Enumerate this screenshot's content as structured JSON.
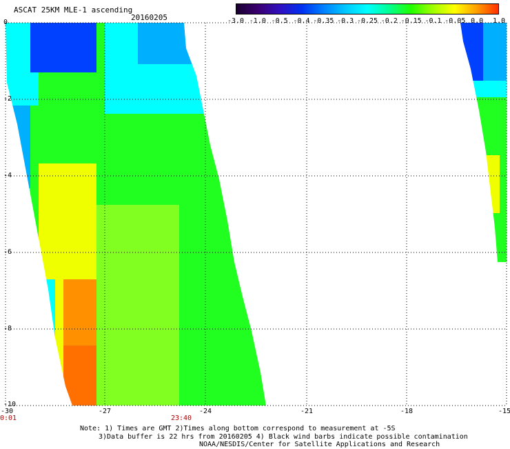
{
  "header": {
    "title": "ASCAT 25KM MLE-1 ascending",
    "date": "20160205"
  },
  "colorbar": {
    "labels": [
      "-3.0",
      "-1.0",
      "-0.5",
      "-0.4",
      "-0.35",
      "-0.3",
      "-0.25",
      "-0.2",
      "-0.15",
      "-0.1",
      "-0.05",
      "0.0",
      "1.0"
    ],
    "colors": [
      "#1a0030",
      "#3a0070",
      "#3010c0",
      "#0030f0",
      "#0080ff",
      "#00c8ff",
      "#00ffff",
      "#00ff90",
      "#20ff00",
      "#a0ff00",
      "#ffff00",
      "#ffa000",
      "#ff3000"
    ]
  },
  "axes": {
    "y_labels": [
      "0",
      "-2",
      "-4",
      "-6",
      "-8",
      "-10"
    ],
    "x_labels": [
      "-30",
      "-27",
      "-24",
      "-21",
      "-18",
      "-15"
    ],
    "time_left": "0:01",
    "time_mid": "23:40"
  },
  "notes": {
    "line1": "Note: 1) Times are GMT 2)Times along bottom correspond to measurement at -5S",
    "line2": "3)Data buffer is 22 hrs from 20160205 4) Black wind barbs indicate possible contamination",
    "line3": "NOAA/NESDIS/Center for Satellite Applications and Research"
  },
  "map": {
    "lon_range": [
      -30,
      -15
    ],
    "lat_range": [
      -10,
      0
    ],
    "colors": {
      "blue": "#0040ff",
      "light_blue": "#00b0ff",
      "cyan": "#00ffff",
      "green": "#20ff20",
      "light_green": "#80ff20",
      "yellow": "#f0ff00",
      "orange": "#ff9000",
      "dark_orange": "#ff7000"
    }
  }
}
